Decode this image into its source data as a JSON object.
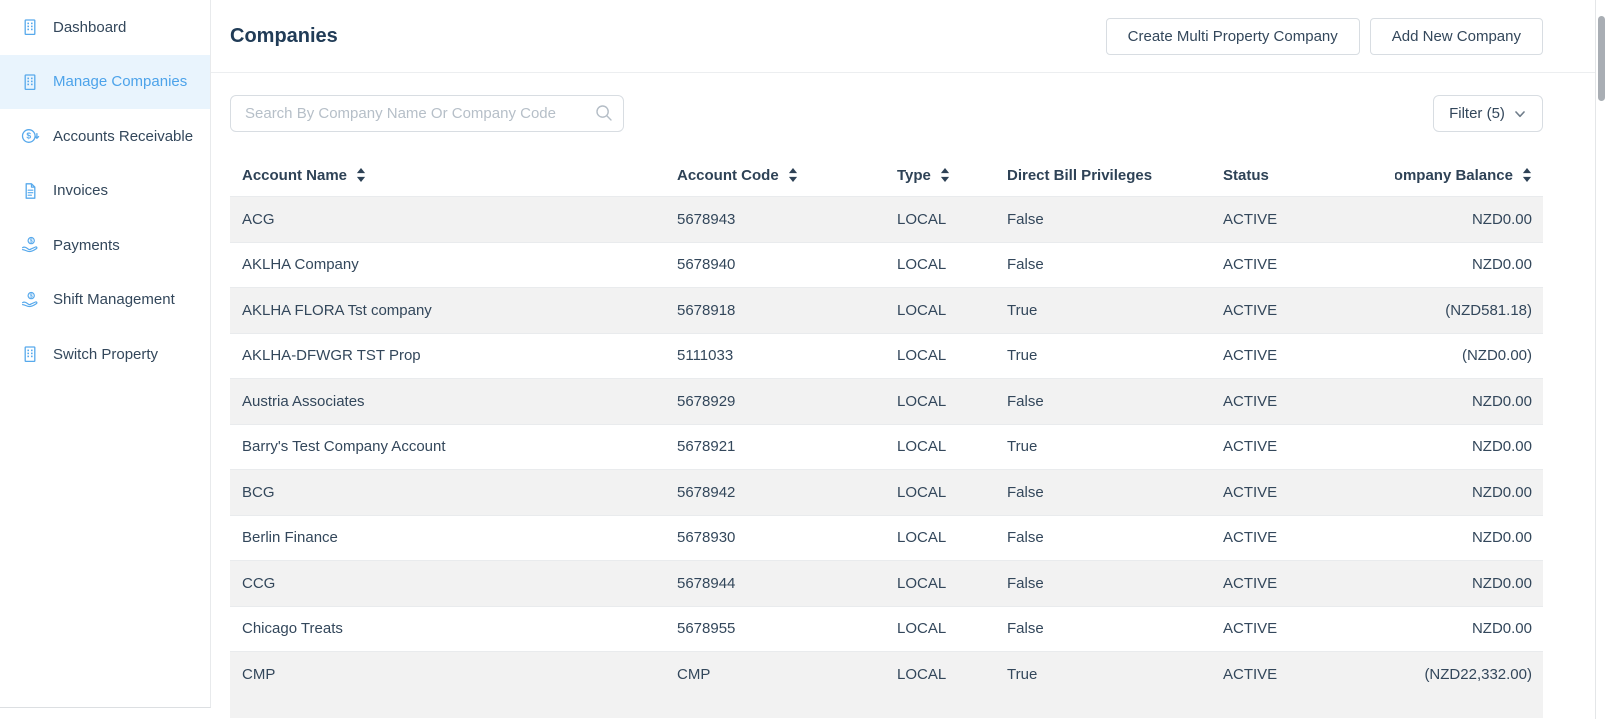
{
  "sidebar": {
    "items": [
      {
        "label": "Dashboard",
        "icon": "building-icon",
        "active": false
      },
      {
        "label": "Manage Companies",
        "icon": "building-icon",
        "active": true
      },
      {
        "label": "Accounts Receivable",
        "icon": "dollar-circle-icon",
        "active": false
      },
      {
        "label": "Invoices",
        "icon": "invoice-icon",
        "active": false
      },
      {
        "label": "Payments",
        "icon": "hand-coin-icon",
        "active": false
      },
      {
        "label": "Shift Management",
        "icon": "hand-coin-icon",
        "active": false
      },
      {
        "label": "Switch Property",
        "icon": "building-icon",
        "active": false
      }
    ]
  },
  "header": {
    "title": "Companies",
    "buttons": [
      {
        "label": "Create Multi Property Company"
      },
      {
        "label": "Add New Company"
      }
    ]
  },
  "toolbar": {
    "search_placeholder": "Search By Company Name Or Company Code",
    "search_value": "",
    "filter_label": "Filter (5)"
  },
  "table": {
    "columns": [
      {
        "label": "Account Name",
        "sortable": true
      },
      {
        "label": "Account Code",
        "sortable": true
      },
      {
        "label": "Type",
        "sortable": true
      },
      {
        "label": "Direct Bill Privileges",
        "sortable": false
      },
      {
        "label": "Status",
        "sortable": false
      },
      {
        "label": "Company Balance",
        "sortable": true
      }
    ],
    "rows": [
      [
        "ACG",
        "5678943",
        "LOCAL",
        "False",
        "ACTIVE",
        "NZD0.00"
      ],
      [
        "AKLHA Company",
        "5678940",
        "LOCAL",
        "False",
        "ACTIVE",
        "NZD0.00"
      ],
      [
        "AKLHA FLORA Tst company",
        "5678918",
        "LOCAL",
        "True",
        "ACTIVE",
        "(NZD581.18)"
      ],
      [
        "AKLHA-DFWGR TST Prop",
        "5111033",
        "LOCAL",
        "True",
        "ACTIVE",
        "(NZD0.00)"
      ],
      [
        "Austria Associates",
        "5678929",
        "LOCAL",
        "False",
        "ACTIVE",
        "NZD0.00"
      ],
      [
        "Barry's Test Company Account",
        "5678921",
        "LOCAL",
        "True",
        "ACTIVE",
        "NZD0.00"
      ],
      [
        "BCG",
        "5678942",
        "LOCAL",
        "False",
        "ACTIVE",
        "NZD0.00"
      ],
      [
        "Berlin Finance",
        "5678930",
        "LOCAL",
        "False",
        "ACTIVE",
        "NZD0.00"
      ],
      [
        "CCG",
        "5678944",
        "LOCAL",
        "False",
        "ACTIVE",
        "NZD0.00"
      ],
      [
        "Chicago Treats",
        "5678955",
        "LOCAL",
        "False",
        "ACTIVE",
        "NZD0.00"
      ],
      [
        "CMP",
        "CMP",
        "LOCAL",
        "True",
        "ACTIVE",
        "(NZD22,332.00)"
      ]
    ]
  },
  "colors": {
    "accent": "#4da3ea",
    "sidebar_active_bg": "#e9f4fd",
    "icon_blue": "#57a9ec",
    "row_stripe": "#f2f2f2",
    "text": "#33475b",
    "border": "#d8dde2"
  }
}
